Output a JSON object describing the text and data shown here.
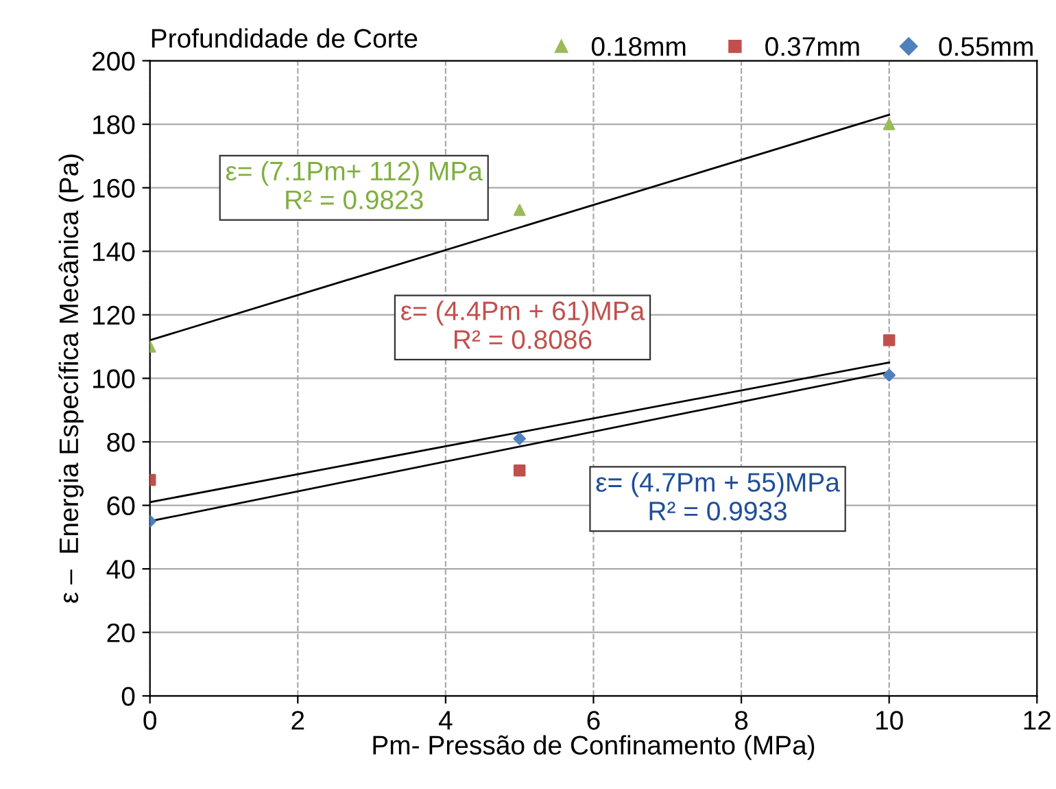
{
  "chart_data": {
    "type": "scatter",
    "xlabel": "Pm- Pressão de Confinamento (MPa)",
    "ylabel": "ε –  Energia Específica Mecânica (Pa)",
    "legend_title": "Profundidade de Corte",
    "series": [
      {
        "name": "0.18mm",
        "color": "#9bbb59",
        "marker": "triangle",
        "x": [
          0,
          5,
          10
        ],
        "values": [
          110,
          153,
          180
        ]
      },
      {
        "name": "0.37mm",
        "color": "#c0504d",
        "marker": "square",
        "x": [
          0,
          5,
          10
        ],
        "values": [
          68,
          71,
          112
        ]
      },
      {
        "name": "0.55mm",
        "color": "#4f81bd",
        "marker": "diamond",
        "x": [
          0,
          5,
          10
        ],
        "values": [
          55,
          81,
          101
        ]
      },
      {
        "type": "line",
        "color": "#000000",
        "marker": "none",
        "x": [
          0,
          10
        ],
        "values": [
          112,
          183
        ]
      },
      {
        "type": "line",
        "color": "#000000",
        "marker": "none",
        "x": [
          0,
          10
        ],
        "values": [
          61,
          105
        ]
      },
      {
        "type": "line",
        "color": "#000000",
        "marker": "none",
        "x": [
          0,
          10
        ],
        "values": [
          55,
          102
        ]
      }
    ],
    "annotations": [
      "ε= (7.1Pm+ 112) MPa\nR² = 0.9823",
      "ε= (4.4Pm + 61)MPa\nR² = 0.8086",
      "ε= (4.7Pm + 55)MPa\nR² = 0.9933"
    ],
    "xlim": [
      0,
      12
    ],
    "xticks": [
      0,
      2,
      4,
      6,
      8,
      10,
      12
    ],
    "ylim": [
      0,
      200
    ],
    "yticks": [
      0,
      20,
      40,
      60,
      80,
      100,
      120,
      140,
      160,
      180,
      200
    ],
    "grid": true,
    "legend": "top"
  }
}
